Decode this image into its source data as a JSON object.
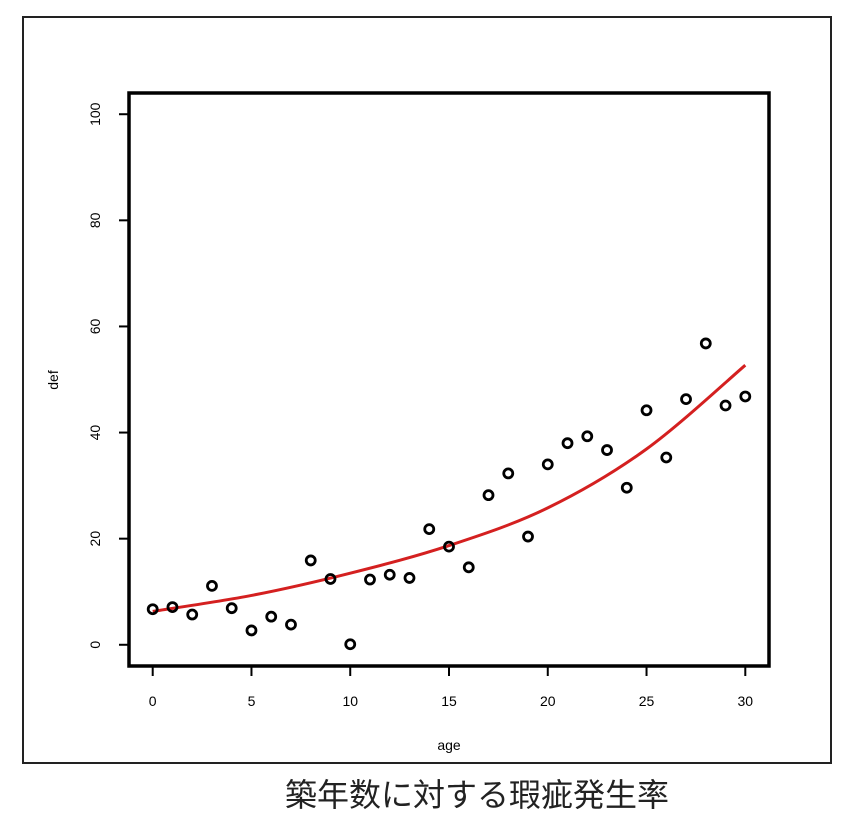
{
  "chart_data": {
    "type": "scatter",
    "caption": "築年数に対する瑕疵発生率",
    "xlabel": "age",
    "ylabel": "def",
    "xlim": [
      -1.2,
      31.2
    ],
    "ylim": [
      -4,
      104
    ],
    "x_ticks": [
      0,
      5,
      10,
      15,
      20,
      25,
      30
    ],
    "x_tick_labels": [
      "0",
      "5",
      "10",
      "15",
      "20",
      "25",
      "30"
    ],
    "y_ticks": [
      0,
      20,
      40,
      60,
      80,
      100
    ],
    "y_tick_labels": [
      "0",
      "20",
      "40",
      "60",
      "80",
      "100"
    ],
    "grid": false,
    "points": {
      "x": [
        0,
        1,
        2,
        3,
        4,
        5,
        6,
        7,
        8,
        9,
        10,
        11,
        12,
        13,
        14,
        15,
        16,
        17,
        18,
        19,
        20,
        21,
        22,
        23,
        24,
        25,
        26,
        27,
        28,
        29,
        30
      ],
      "y": [
        6.7,
        7.1,
        5.7,
        11.1,
        6.9,
        2.7,
        5.3,
        3.8,
        15.9,
        12.4,
        0.1,
        12.3,
        13.2,
        12.6,
        21.8,
        18.5,
        14.6,
        28.2,
        32.3,
        20.4,
        34.0,
        38.0,
        39.3,
        36.7,
        29.6,
        44.2,
        35.3,
        46.3,
        56.8,
        45.1,
        46.8
      ],
      "marker": "open-circle",
      "color": "#000000"
    },
    "fit_curve": {
      "x": [
        0,
        5,
        10,
        15,
        20,
        25,
        30
      ],
      "y": [
        6.3,
        9.3,
        13.5,
        18.7,
        25.8,
        36.9,
        52.7
      ],
      "color": "#d42020"
    }
  }
}
